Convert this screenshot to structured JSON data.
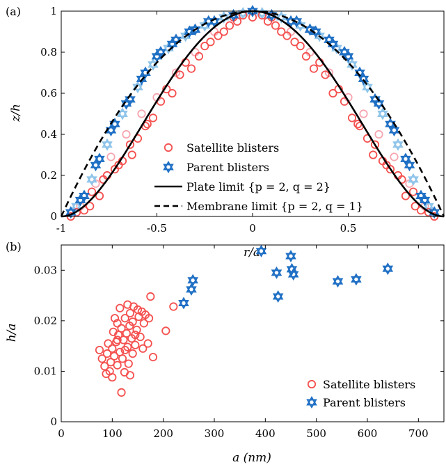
{
  "colors": {
    "satellite": "#f4504f",
    "satellite_light": "#f6a6b0",
    "parent": "#1e6fc4",
    "parent_light": "#8ec4ea",
    "axis": "#000000"
  },
  "chart_data": [
    {
      "panel_label": "(a)",
      "type": "scatter",
      "xlabel": "r/a",
      "ylabel": "z/h",
      "xlim": [
        -1,
        1
      ],
      "ylim": [
        0,
        1
      ],
      "x_ticks": [
        -1,
        -0.5,
        0,
        0.5
      ],
      "x_tick_labels": [
        "-1",
        "-0.5",
        "0",
        "0.5"
      ],
      "y_ticks": [
        0,
        0.2,
        0.4,
        0.6,
        0.8,
        1
      ],
      "y_tick_labels": [
        "0",
        "0.2",
        "0.4",
        "0.6",
        "0.8",
        "1"
      ],
      "legend_position": "center",
      "legend": [
        {
          "label": "Satellite blisters",
          "marker": "circle",
          "color": "#f4504f"
        },
        {
          "label": "Parent blisters",
          "marker": "hexagram",
          "color": "#1e6fc4"
        },
        {
          "label": "Plate limit {p = 2, q = 2}",
          "line": "solid",
          "color": "#000000"
        },
        {
          "label": "Membrane limit {p = 2, q = 1}",
          "line": "dashed",
          "color": "#000000"
        }
      ],
      "series": [
        {
          "name": "Satellite blisters",
          "marker": "circle",
          "color": "#f4504f",
          "light_color": "#f6a6b0",
          "profiles": [
            {
              "shade": "dark",
              "x": [
                -0.95,
                -0.85,
                -0.78,
                -0.7,
                -0.63,
                -0.55,
                -0.45,
                -0.35,
                -0.25,
                -0.15,
                -0.08,
                0,
                0.08,
                0.15,
                0.25,
                0.35,
                0.45,
                0.55,
                0.63,
                0.7,
                0.78,
                0.85,
                0.95
              ],
              "y": [
                0,
                0.05,
                0.18,
                0.25,
                0.3,
                0.45,
                0.62,
                0.75,
                0.83,
                0.9,
                0.95,
                0.97,
                0.95,
                0.9,
                0.83,
                0.75,
                0.62,
                0.45,
                0.3,
                0.25,
                0.18,
                0.05,
                0
              ]
            },
            {
              "shade": "dark",
              "x": [
                -0.92,
                -0.84,
                -0.76,
                -0.68,
                -0.6,
                -0.52,
                -0.42,
                -0.32,
                -0.22,
                -0.12,
                -0.05,
                0.05,
                0.12,
                0.22,
                0.32,
                0.42,
                0.52,
                0.6,
                0.68,
                0.76,
                0.84,
                0.92
              ],
              "y": [
                0.02,
                0.12,
                0.2,
                0.27,
                0.38,
                0.48,
                0.6,
                0.72,
                0.85,
                0.93,
                0.98,
                0.98,
                0.93,
                0.85,
                0.72,
                0.6,
                0.48,
                0.38,
                0.27,
                0.2,
                0.12,
                0.02
              ]
            },
            {
              "shade": "dark",
              "x": [
                -0.88,
                -0.8,
                -0.72,
                -0.64,
                -0.56,
                -0.48,
                -0.38,
                -0.28,
                -0.18,
                -0.1,
                0.1,
                0.18,
                0.28,
                0.38,
                0.48,
                0.56,
                0.64,
                0.72,
                0.8,
                0.88
              ],
              "y": [
                0.03,
                0.1,
                0.23,
                0.35,
                0.44,
                0.56,
                0.69,
                0.78,
                0.88,
                0.97,
                0.97,
                0.88,
                0.78,
                0.69,
                0.56,
                0.44,
                0.35,
                0.23,
                0.1,
                0.03
              ]
            },
            {
              "shade": "light",
              "x": [
                -0.9,
                -0.82,
                -0.74,
                -0.66,
                -0.58,
                -0.5,
                -0.4,
                -0.3,
                -0.2,
                0.2,
                0.3,
                0.4,
                0.5,
                0.58,
                0.66,
                0.74,
                0.82,
                0.9
              ],
              "y": [
                0.05,
                0.16,
                0.29,
                0.4,
                0.5,
                0.58,
                0.7,
                0.8,
                0.9,
                0.9,
                0.8,
                0.7,
                0.58,
                0.5,
                0.4,
                0.29,
                0.16,
                0.05
              ]
            }
          ]
        },
        {
          "name": "Parent blisters",
          "marker": "hexagram",
          "color": "#1e6fc4",
          "light_color": "#8ec4ea",
          "profiles": [
            {
              "shade": "dark",
              "x": [
                -0.95,
                -0.88,
                -0.8,
                -0.72,
                -0.64,
                -0.56,
                -0.48,
                -0.4,
                -0.3,
                -0.2,
                -0.1,
                0,
                0.1,
                0.2,
                0.3,
                0.4,
                0.48,
                0.56,
                0.64,
                0.72,
                0.8,
                0.88,
                0.95
              ],
              "y": [
                0.02,
                0.1,
                0.28,
                0.45,
                0.57,
                0.7,
                0.8,
                0.86,
                0.91,
                0.95,
                0.98,
                1,
                0.98,
                0.95,
                0.91,
                0.86,
                0.8,
                0.7,
                0.57,
                0.45,
                0.28,
                0.1,
                0.02
              ]
            },
            {
              "shade": "light",
              "x": [
                -0.92,
                -0.84,
                -0.76,
                -0.68,
                -0.6,
                -0.52,
                -0.44,
                -0.35,
                -0.25,
                -0.15,
                -0.05,
                0.05,
                0.15,
                0.25,
                0.35,
                0.44,
                0.52,
                0.6,
                0.68,
                0.76,
                0.84,
                0.92
              ],
              "y": [
                0.05,
                0.18,
                0.35,
                0.5,
                0.63,
                0.74,
                0.82,
                0.88,
                0.93,
                0.97,
                0.99,
                0.99,
                0.97,
                0.93,
                0.88,
                0.82,
                0.74,
                0.63,
                0.5,
                0.35,
                0.18,
                0.05
              ]
            },
            {
              "shade": "dark",
              "x": [
                -0.9,
                -0.82,
                -0.74,
                -0.66,
                -0.58,
                -0.5,
                -0.42,
                -0.33,
                -0.23,
                0.23,
                0.33,
                0.42,
                0.5,
                0.58,
                0.66,
                0.74,
                0.82,
                0.9
              ],
              "y": [
                0.08,
                0.25,
                0.42,
                0.55,
                0.67,
                0.78,
                0.84,
                0.9,
                0.95,
                0.95,
                0.9,
                0.84,
                0.78,
                0.67,
                0.55,
                0.42,
                0.25,
                0.08
              ]
            }
          ]
        }
      ],
      "lines": [
        {
          "name": "Plate limit {p = 2, q = 2}",
          "style": "solid",
          "formula": "(1 - x^2)^2"
        },
        {
          "name": "Membrane limit {p = 2, q = 1}",
          "style": "dashed",
          "formula": "1 - x^2"
        }
      ]
    },
    {
      "panel_label": "(b)",
      "type": "scatter",
      "xlabel": "a (nm)",
      "ylabel": "h/a",
      "xlim": [
        0,
        750
      ],
      "ylim": [
        0,
        0.035
      ],
      "x_ticks": [
        0,
        100,
        200,
        300,
        400,
        500,
        600,
        700
      ],
      "x_tick_labels": [
        "0",
        "100",
        "200",
        "300",
        "400",
        "500",
        "600",
        "700"
      ],
      "y_ticks": [
        0,
        0.01,
        0.02,
        0.03
      ],
      "y_tick_labels": [
        "0",
        "0.01",
        "0.02",
        "0.03"
      ],
      "legend_position": "bottom-right",
      "legend": [
        {
          "label": "Satellite blisters",
          "marker": "circle",
          "color": "#f4504f"
        },
        {
          "label": "Parent blisters",
          "marker": "hexagram",
          "color": "#1e6fc4"
        }
      ],
      "series": [
        {
          "name": "Satellite blisters",
          "marker": "circle",
          "color": "#f4504f",
          "points": [
            [
              75,
              0.0142
            ],
            [
              80,
              0.0125
            ],
            [
              85,
              0.011
            ],
            [
              88,
              0.0095
            ],
            [
              90,
              0.0135
            ],
            [
              92,
              0.0155
            ],
            [
              95,
              0.01
            ],
            [
              97,
              0.0118
            ],
            [
              100,
              0.0145
            ],
            [
              100,
              0.0088
            ],
            [
              102,
              0.0178
            ],
            [
              104,
              0.013
            ],
            [
              105,
              0.0205
            ],
            [
              108,
              0.0158
            ],
            [
              110,
              0.0112
            ],
            [
              110,
              0.0195
            ],
            [
              112,
              0.0172
            ],
            [
              115,
              0.0138
            ],
            [
              115,
              0.0225
            ],
            [
              118,
              0.0185
            ],
            [
              118,
              0.0058
            ],
            [
              120,
              0.0125
            ],
            [
              122,
              0.0162
            ],
            [
              124,
              0.0098
            ],
            [
              125,
              0.0205
            ],
            [
              128,
              0.0175
            ],
            [
              130,
              0.0148
            ],
            [
              130,
              0.0232
            ],
            [
              132,
              0.0115
            ],
            [
              134,
              0.019
            ],
            [
              135,
              0.0215
            ],
            [
              138,
              0.0165
            ],
            [
              140,
              0.0198
            ],
            [
              140,
              0.0135
            ],
            [
              142,
              0.0228
            ],
            [
              145,
              0.0152
            ],
            [
              148,
              0.0182
            ],
            [
              150,
              0.0222
            ],
            [
              152,
              0.0208
            ],
            [
              155,
              0.0168
            ],
            [
              158,
              0.0218
            ],
            [
              160,
              0.0145
            ],
            [
              162,
              0.0195
            ],
            [
              165,
              0.0212
            ],
            [
              170,
              0.0155
            ],
            [
              172,
              0.0205
            ],
            [
              175,
              0.0248
            ],
            [
              180,
              0.0128
            ],
            [
              205,
              0.018
            ],
            [
              220,
              0.0228
            ],
            [
              110,
              0.0162
            ],
            [
              125,
              0.0142
            ],
            [
              145,
              0.0172
            ],
            [
              135,
              0.0092
            ]
          ]
        },
        {
          "name": "Parent blisters",
          "marker": "hexagram",
          "color": "#1e6fc4",
          "points": [
            [
              240,
              0.0235
            ],
            [
              255,
              0.0262
            ],
            [
              258,
              0.028
            ],
            [
              392,
              0.0338
            ],
            [
              422,
              0.0295
            ],
            [
              425,
              0.0248
            ],
            [
              450,
              0.0328
            ],
            [
              452,
              0.0302
            ],
            [
              455,
              0.0292
            ],
            [
              542,
              0.0278
            ],
            [
              578,
              0.0282
            ],
            [
              640,
              0.0303
            ]
          ]
        }
      ]
    }
  ]
}
